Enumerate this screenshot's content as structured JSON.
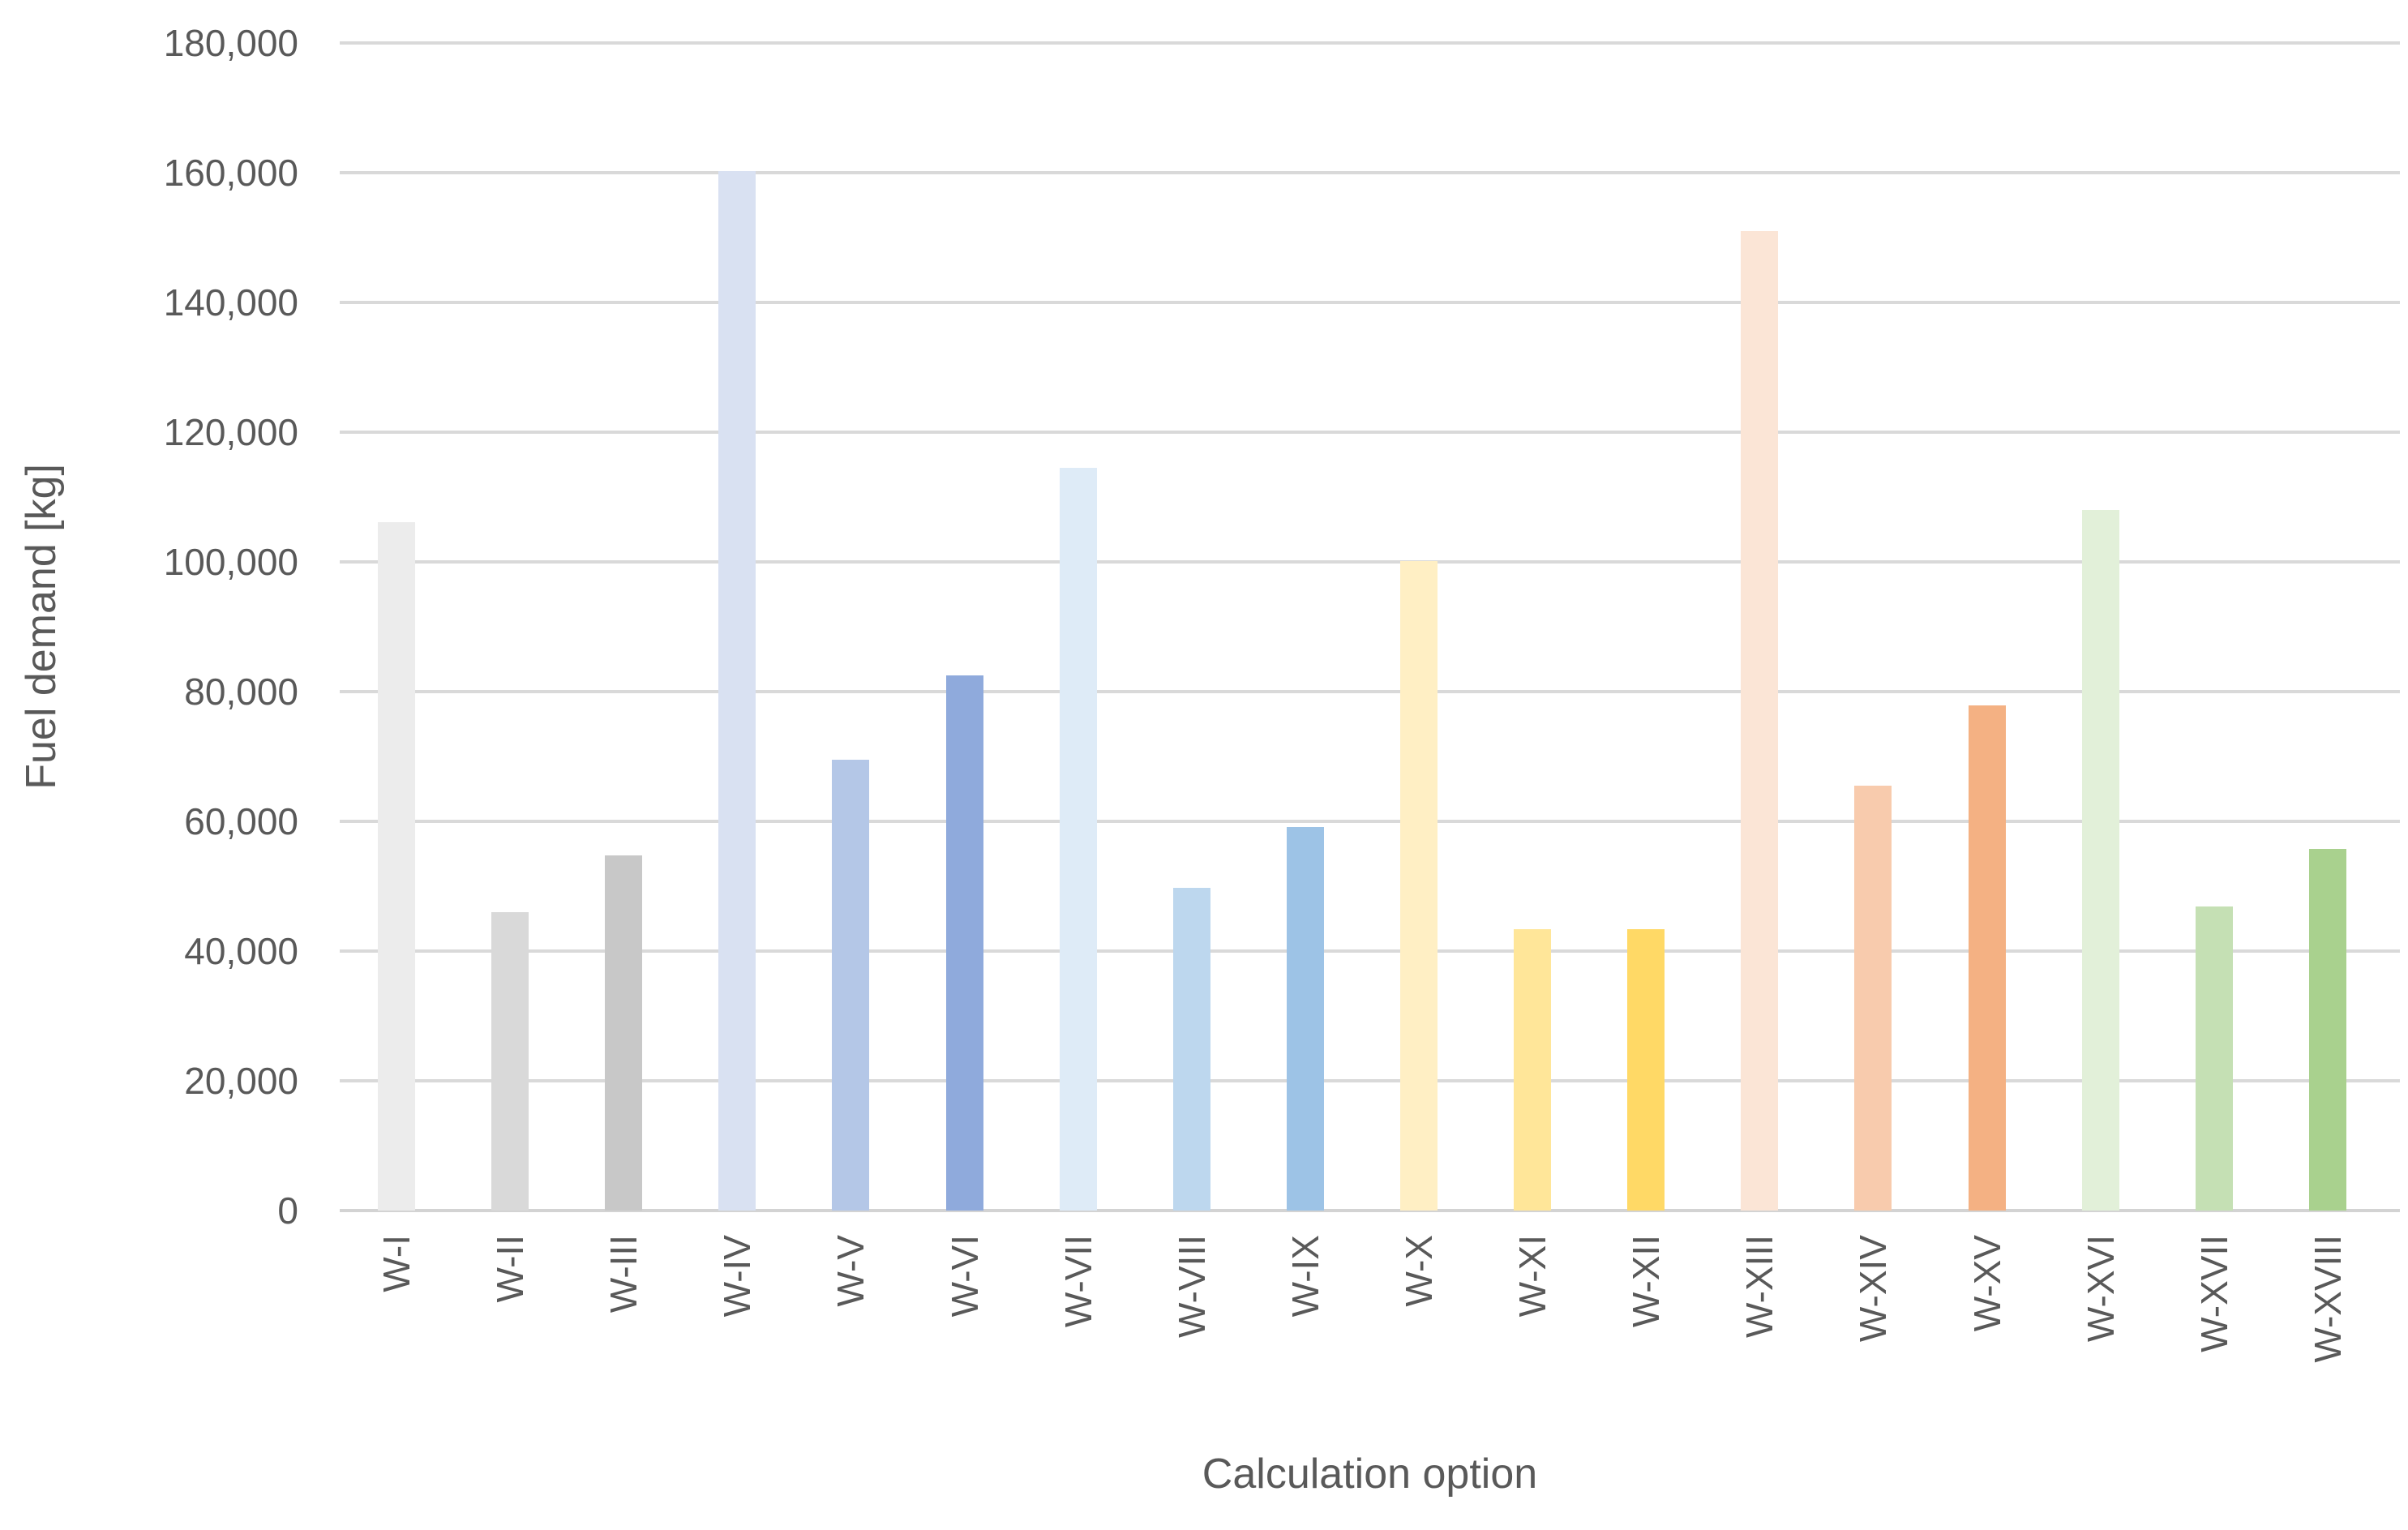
{
  "chart_data": {
    "type": "bar",
    "title": "",
    "xlabel": "Calculation option",
    "ylabel": "Fuel demand [kg]",
    "ylim": [
      0,
      180000
    ],
    "ytick_step": 20000,
    "grid": true,
    "legend": false,
    "y_ticks": [
      "0",
      "20,000",
      "40,000",
      "60,000",
      "80,000",
      "100,000",
      "120,000",
      "140,000",
      "160,000",
      "180,000"
    ],
    "categories": [
      "W-I",
      "W-II",
      "W-III",
      "W-IV",
      "W-V",
      "W-VI",
      "W-VII",
      "W-VIII",
      "W-IX",
      "W-X",
      "W-XI",
      "W-XII",
      "W-XIII",
      "W-XIV",
      "W-XV",
      "W-XVI",
      "W-XVII",
      "W-XVIII"
    ],
    "values": [
      106100,
      46000,
      54800,
      160300,
      69500,
      82500,
      114500,
      49700,
      59100,
      100100,
      43400,
      43400,
      151000,
      65500,
      77900,
      108000,
      46900,
      55800
    ],
    "bar_colors": [
      "#ececec",
      "#d9d9d9",
      "#c8c8c8",
      "#d9e1f2",
      "#b4c7e7",
      "#8faadc",
      "#deebf7",
      "#bdd7ee",
      "#9dc3e6",
      "#ffefc4",
      "#ffe699",
      "#ffd966",
      "#fbe5d6",
      "#f8cbad",
      "#f4b183",
      "#e2f0d9",
      "#c5e0b4",
      "#a9d18e"
    ],
    "colors": {
      "gridline": "#d9d9d9",
      "axis_line": "#d3d3d3",
      "text": "#595959",
      "background": "#ffffff"
    }
  }
}
